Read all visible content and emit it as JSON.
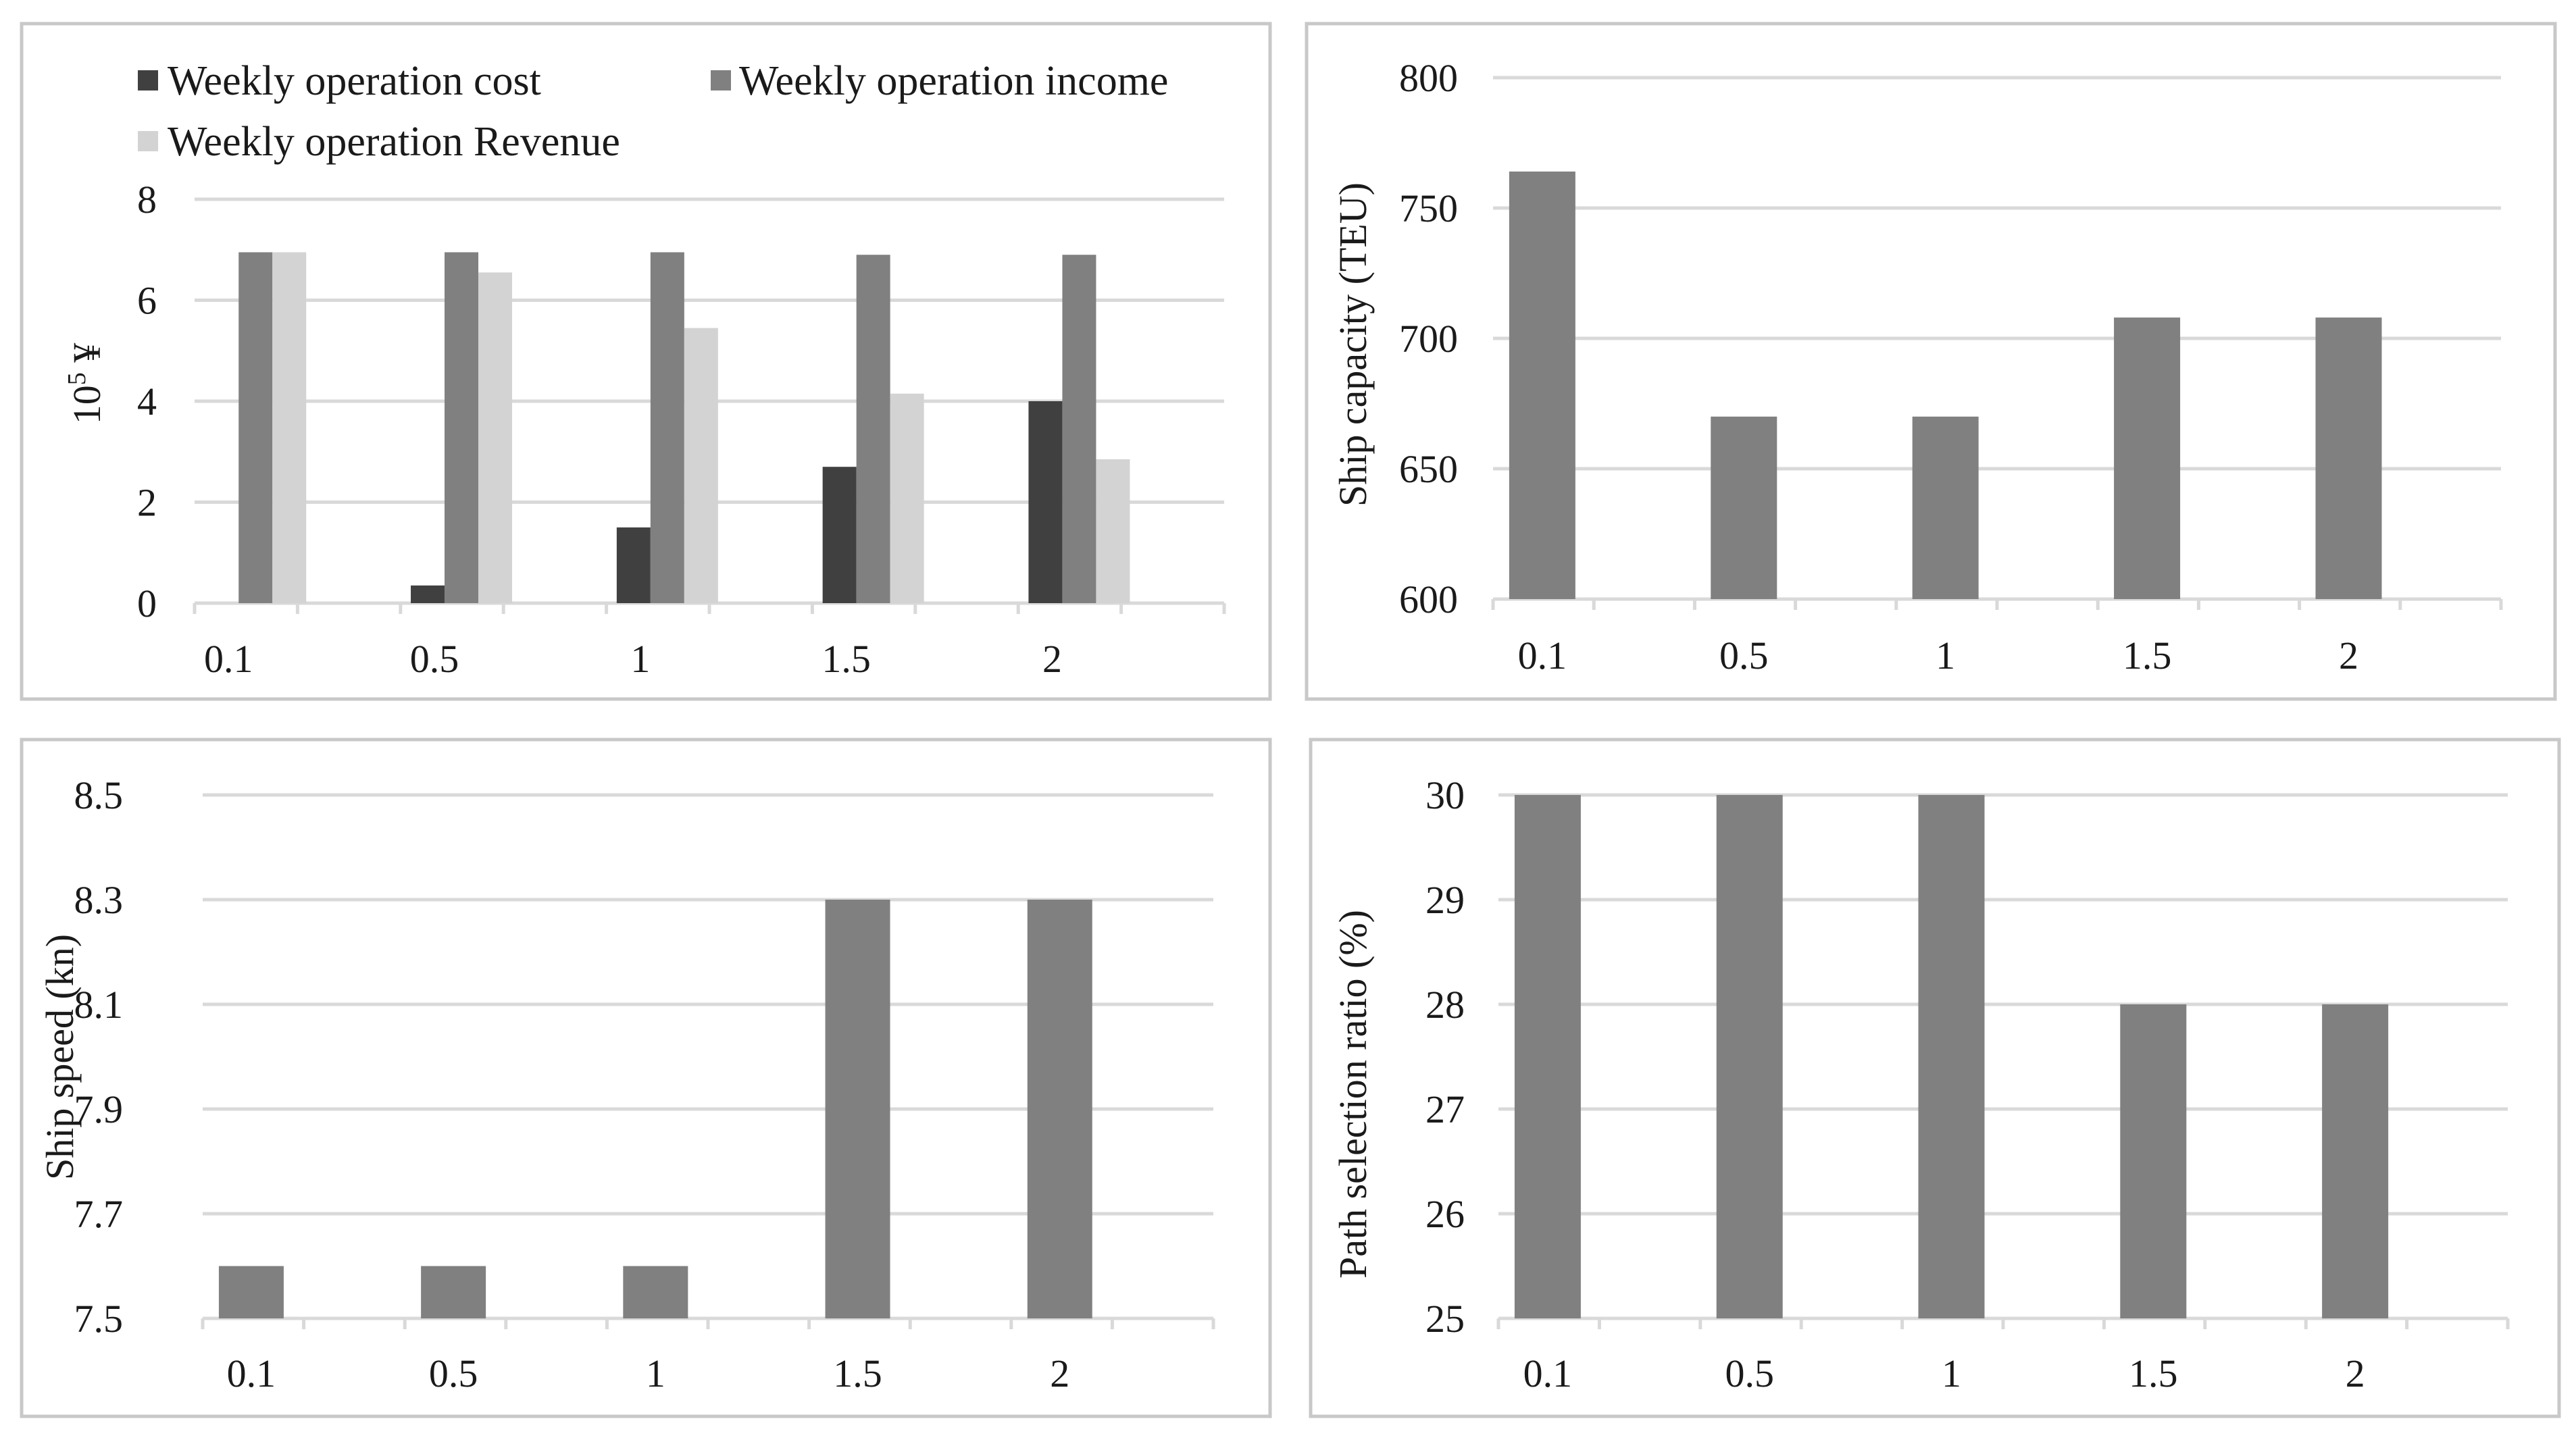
{
  "chart_data": [
    {
      "type": "bar",
      "title": "",
      "categories": [
        "0.1",
        "0.5",
        "1",
        "1.5",
        "2"
      ],
      "series": [
        {
          "name": "Weekly operation cost",
          "color": "#404040",
          "values": [
            0,
            0.35,
            1.5,
            2.7,
            4.0
          ]
        },
        {
          "name": "Weekly operation income",
          "color": "#808080",
          "values": [
            6.95,
            6.95,
            6.95,
            6.9,
            6.9
          ]
        },
        {
          "name": "Weekly operation Revenue",
          "color": "#d3d3d3",
          "values": [
            6.95,
            6.55,
            5.45,
            4.15,
            2.85
          ]
        }
      ],
      "ylabel_main": "10",
      "ylabel_sup": "5",
      "ylabel_unit": " ¥",
      "ylim": [
        0,
        8
      ],
      "yticks": [
        "0",
        "2",
        "4",
        "6",
        "8"
      ],
      "legend_position": "top"
    },
    {
      "type": "bar",
      "title": "",
      "categories": [
        "0.1",
        "0.5",
        "1",
        "1.5",
        "2"
      ],
      "series": [
        {
          "name": "Ship capacity",
          "color": "#808080",
          "values": [
            764,
            670,
            670,
            708,
            708
          ]
        }
      ],
      "ylabel": "Ship capacity (TEU)",
      "ylim": [
        600,
        800
      ],
      "yticks": [
        "600",
        "650",
        "700",
        "750",
        "800"
      ]
    },
    {
      "type": "bar",
      "title": "",
      "categories": [
        "0.1",
        "0.5",
        "1",
        "1.5",
        "2"
      ],
      "series": [
        {
          "name": "Ship speed",
          "color": "#808080",
          "values": [
            7.6,
            7.6,
            7.6,
            8.3,
            8.3
          ]
        }
      ],
      "ylabel": "Ship speed (kn)",
      "ylim": [
        7.5,
        8.5
      ],
      "yticks": [
        "7.5",
        "7.7",
        "7.9",
        "8.1",
        "8.3",
        "8.5"
      ]
    },
    {
      "type": "bar",
      "title": "",
      "categories": [
        "0.1",
        "0.5",
        "1",
        "1.5",
        "2"
      ],
      "series": [
        {
          "name": "Path selection ratio",
          "color": "#808080",
          "values": [
            30,
            30,
            30,
            28,
            28
          ]
        }
      ],
      "ylabel": "Path selection ratio (%)",
      "ylim": [
        25,
        30
      ],
      "yticks": [
        "25",
        "26",
        "27",
        "28",
        "29",
        "30"
      ]
    }
  ]
}
